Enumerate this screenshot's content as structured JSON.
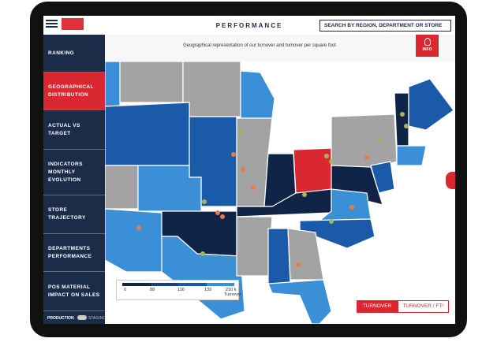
{
  "header": {
    "title": "PERFORMANCE",
    "search": "SEARCH BY REGION, DEPARTMENT OR STORE"
  },
  "menu": [
    "RANKING",
    "GEOGRAPHICAL DISTRIBUTION",
    "ACTUAL VS TARGET",
    "INDICATORS MONTHLY EVOLUTION",
    "STORE TRAJECTORY",
    "DEPARTMENTS PERFORMANCE",
    "POS MATERIAL IMPACT ON SALES"
  ],
  "footer": {
    "left": "PRODUCTION",
    "right": "STAGING"
  },
  "subtitle": "Geographical representation of our turnover and turnover per square foot",
  "info": "INFO",
  "legend": {
    "ticks": [
      "0",
      "88",
      "116",
      "139",
      "210 k"
    ],
    "title": "Turnover"
  },
  "toggle": [
    "TURNOVER",
    "TURNOVER / FT²"
  ]
}
